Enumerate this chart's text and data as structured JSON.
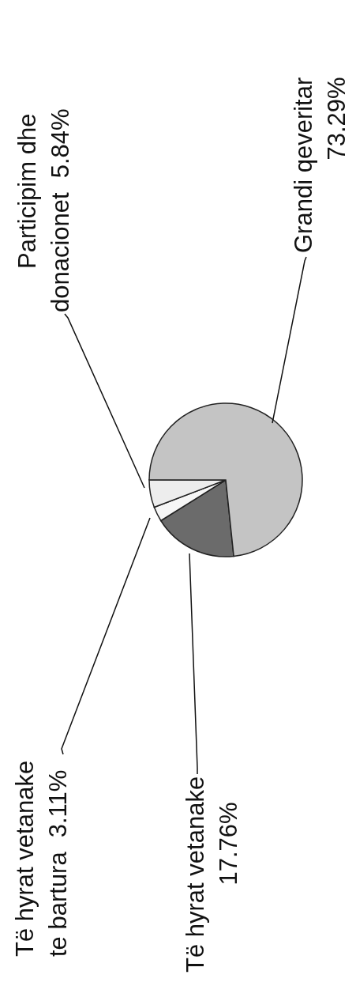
{
  "chart_data": {
    "type": "pie",
    "categories": [
      "Të hyrat vetanake",
      "Të hyrat vetanake te bartura",
      "Participim dhe donacionet",
      "Grandi qeveritar"
    ],
    "values": [
      17.76,
      3.11,
      5.84,
      73.29
    ],
    "value_labels": [
      "17.76%",
      "3.11%",
      "5.84%",
      "73.29%"
    ],
    "colors": [
      "#6b6b6b",
      "#f6f6f6",
      "#ededed",
      "#c4c4c4"
    ]
  }
}
